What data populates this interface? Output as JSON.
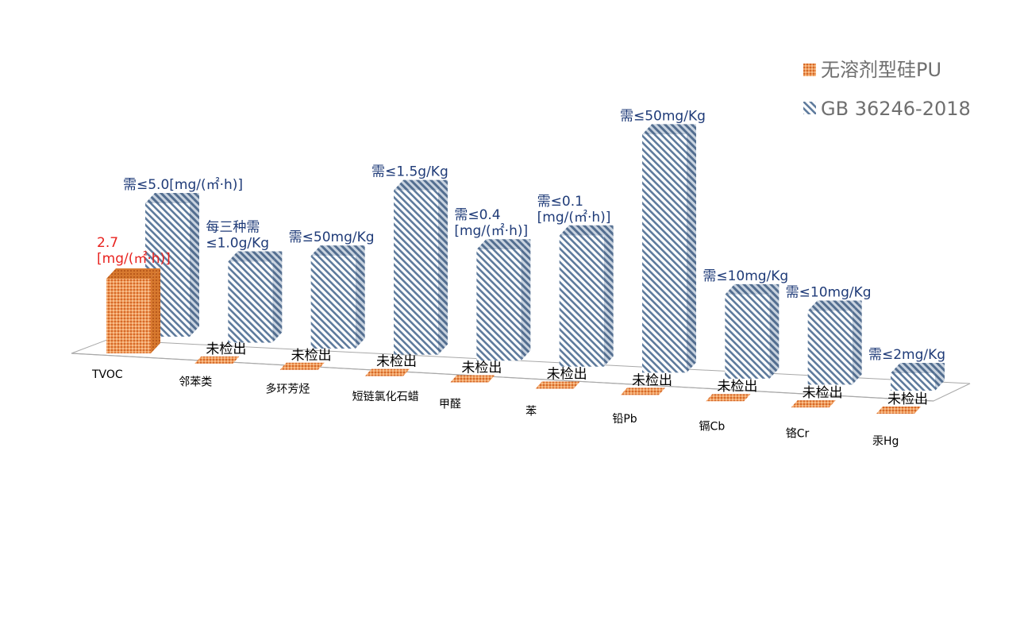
{
  "colors": {
    "series_a_face": "#ef9a5a",
    "series_a_dark": "#d7702c",
    "series_b_face": "#ffffff",
    "series_b_stripe": "#5d7a9c",
    "series_b_side": "#6f89a8",
    "axis": "#a8a8a8",
    "annotation_blue": "#1f3b78",
    "annotation_red": "#e8231f"
  },
  "legend": [
    {
      "label": "无溶剂型硅PU",
      "icon": "orange-check-icon"
    },
    {
      "label": "GB 36246-2018",
      "icon": "blue-stripe-icon"
    }
  ],
  "chart_data": {
    "type": "bar",
    "title": "",
    "xlabel": "",
    "ylabel": "",
    "categories": [
      "TVOC",
      "邻苯类",
      "多环芳烃",
      "短链氯化石蜡",
      "甲醛",
      "苯",
      "铅Pb",
      "镉Cb",
      "铬Cr",
      "汞Hg"
    ],
    "series": [
      {
        "name": "无溶剂型硅PU",
        "values": [
          2.7,
          0,
          0,
          0,
          0,
          0,
          0,
          0,
          0,
          0
        ],
        "labels": [
          "2.7\n[mg/(㎡·h)]",
          "未检出",
          "未检出",
          "未检出",
          "未检出",
          "未检出",
          "未检出",
          "未检出",
          "未检出",
          "未检出"
        ]
      },
      {
        "name": "GB 36246-2018",
        "values": [
          5.0,
          1.0,
          50,
          1.5,
          0.4,
          0.1,
          50,
          10,
          10,
          2
        ],
        "labels": [
          "需≤5.0[mg/(㎡·h)]",
          "每三种需\n≤1.0g/Kg",
          "需≤50mg/Kg",
          "需≤1.5g/Kg",
          "需≤0.4\n[mg/(㎡·h)]",
          "需≤0.1\n[mg/(㎡·h)]",
          "需≤50mg/Kg",
          "需≤10mg/Kg",
          "需≤10mg/Kg",
          "需≤2mg/Kg"
        ]
      }
    ],
    "grid": false,
    "legend_position": "top-right"
  }
}
